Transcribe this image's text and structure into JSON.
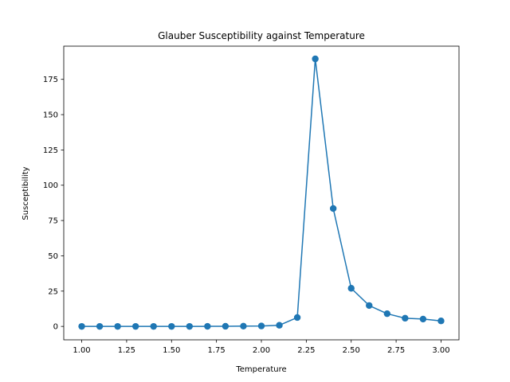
{
  "chart_data": {
    "type": "line",
    "title": "Glauber Susceptibility against Temperature",
    "xlabel": "Temperature",
    "ylabel": "Susceptibility",
    "xlim": [
      0.9,
      3.1
    ],
    "ylim": [
      -9.5,
      198.5
    ],
    "xticks": [
      1.0,
      1.25,
      1.5,
      1.75,
      2.0,
      2.25,
      2.5,
      2.75,
      3.0
    ],
    "xtick_labels": [
      "1.00",
      "1.25",
      "1.50",
      "1.75",
      "2.00",
      "2.25",
      "2.50",
      "2.75",
      "3.00"
    ],
    "yticks": [
      0,
      25,
      50,
      75,
      100,
      125,
      150,
      175
    ],
    "ytick_labels": [
      "0",
      "25",
      "50",
      "75",
      "100",
      "125",
      "150",
      "175"
    ],
    "grid": false,
    "series": [
      {
        "color": "#1f77b4",
        "marker": "circle",
        "x": [
          1.0,
          1.1,
          1.2,
          1.3,
          1.4,
          1.5,
          1.6,
          1.7,
          1.8,
          1.9,
          2.0,
          2.1,
          2.2,
          2.3,
          2.4,
          2.5,
          2.6,
          2.7,
          2.8,
          2.9,
          3.0
        ],
        "y": [
          0.0,
          0.0,
          0.0,
          0.0,
          0.0,
          0.0,
          0.0,
          0.05,
          0.1,
          0.2,
          0.3,
          0.8,
          6.3,
          189.5,
          83.5,
          27.0,
          14.8,
          9.0,
          5.8,
          5.2,
          3.9
        ]
      }
    ]
  }
}
